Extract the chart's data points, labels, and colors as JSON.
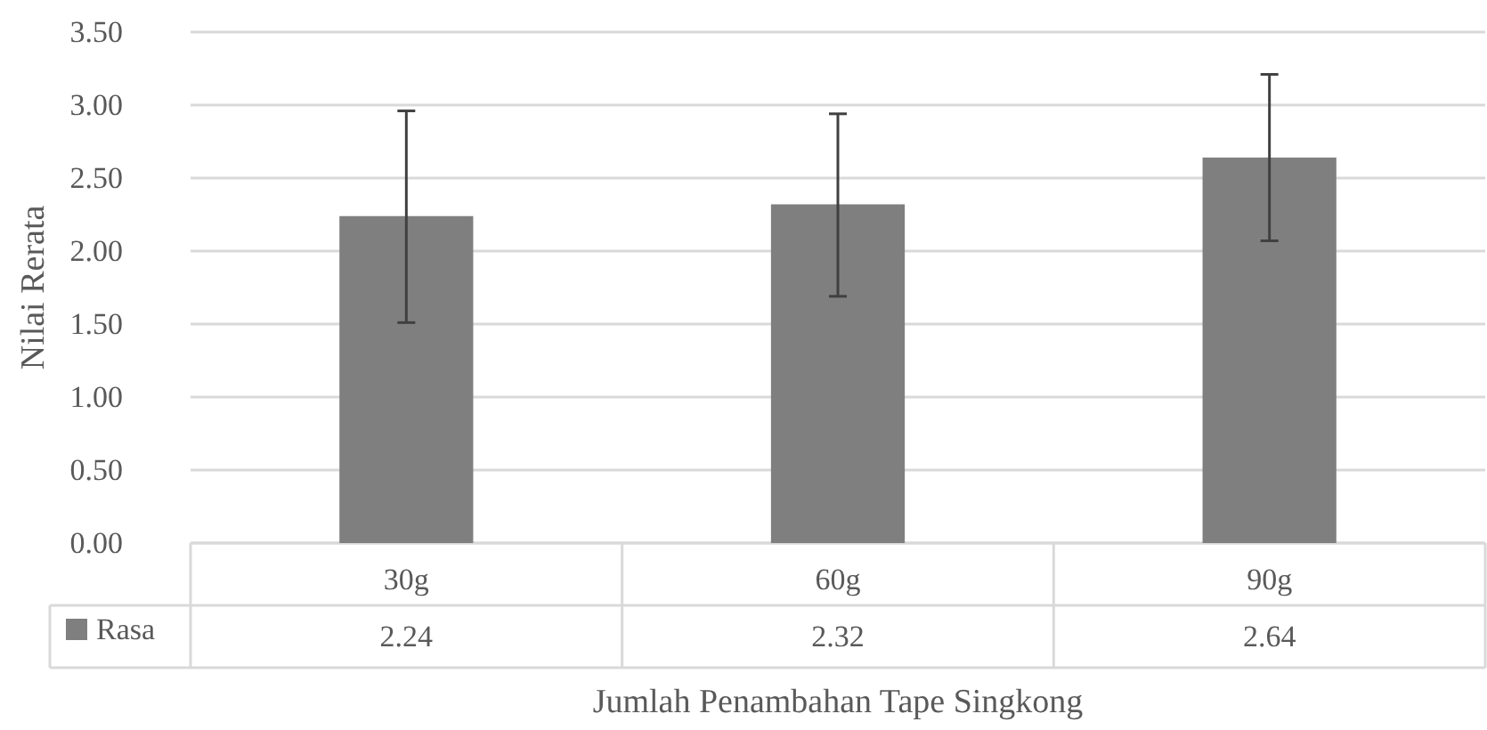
{
  "chart_data": {
    "type": "bar",
    "xlabel": "Jumlah Penambahan Tape Singkong",
    "ylabel": "Nilai Rerata",
    "categories": [
      "30g",
      "60g",
      "90g"
    ],
    "series": [
      {
        "name": "Rasa",
        "color": "#7f7f7f",
        "values": [
          2.24,
          2.32,
          2.64
        ],
        "errors": [
          [
            1.51,
            2.96
          ],
          [
            1.69,
            2.94
          ],
          [
            2.07,
            3.21
          ]
        ]
      }
    ],
    "ylim": [
      0,
      3.5
    ],
    "yticks": [
      {
        "value": 0,
        "label": "0.00"
      },
      {
        "value": 0.5,
        "label": "0.50"
      },
      {
        "value": 1,
        "label": "1.00"
      },
      {
        "value": 1.5,
        "label": "1.50"
      },
      {
        "value": 2,
        "label": "2.00"
      },
      {
        "value": 2.5,
        "label": "2.50"
      },
      {
        "value": 3,
        "label": "3.00"
      },
      {
        "value": 3.5,
        "label": "3.50"
      }
    ],
    "grid": "y",
    "legend": "bottom left",
    "data_labels": true
  }
}
